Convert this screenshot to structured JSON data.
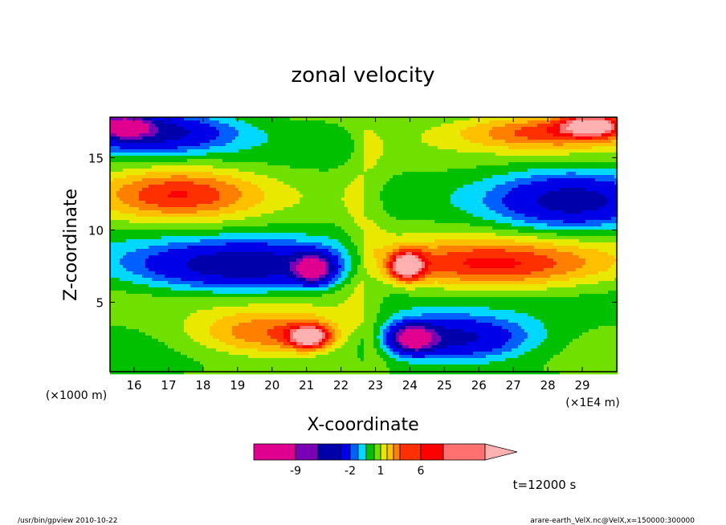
{
  "chart_data": {
    "type": "heatmap",
    "title": "zonal velocity",
    "xlabel": "X-coordinate",
    "ylabel": "Z-coordinate",
    "x_unit": "(×1E4 m)",
    "y_unit": "(×1000 m)",
    "x_ticks": [
      "16",
      "17",
      "18",
      "19",
      "20",
      "21",
      "22",
      "23",
      "24",
      "25",
      "26",
      "27",
      "28",
      "29"
    ],
    "y_ticks": [
      "5",
      "10",
      "15"
    ],
    "xlim": [
      15.3,
      30.0
    ],
    "ylim": [
      0.2,
      17.8
    ],
    "time_label": "t=12000 s",
    "colorbar": {
      "tick_labels": [
        "-9",
        "-2",
        "1",
        "6"
      ],
      "colors": [
        "#e00090",
        "#7a00b4",
        "#0000aa",
        "#0000e8",
        "#0060ff",
        "#00d8ff",
        "#00c000",
        "#70e000",
        "#e8e800",
        "#ffc000",
        "#ff8000",
        "#ff3000",
        "#ff0000",
        "#ff7070",
        "#ffb0b0"
      ]
    },
    "fields": [
      {
        "x": 15.7,
        "z": 17.2,
        "u": -9.5,
        "sx": 0.7,
        "sz": 0.7
      },
      {
        "x": 16.5,
        "z": 16.8,
        "u": -6.0,
        "sx": 2.2,
        "sz": 1.3
      },
      {
        "x": 29.3,
        "z": 17.3,
        "u": 6.5,
        "sx": 0.9,
        "sz": 0.8
      },
      {
        "x": 28.0,
        "z": 16.8,
        "u": 4.2,
        "sx": 2.6,
        "sz": 1.2
      },
      {
        "x": 17.3,
        "z": 12.5,
        "u": 4.5,
        "sx": 2.3,
        "sz": 1.8
      },
      {
        "x": 28.7,
        "z": 12.0,
        "u": -5.5,
        "sx": 2.2,
        "sz": 1.9
      },
      {
        "x": 19.3,
        "z": 7.5,
        "u": -6.5,
        "sx": 3.2,
        "sz": 1.6
      },
      {
        "x": 21.2,
        "z": 7.3,
        "u": -9.5,
        "sx": 0.5,
        "sz": 0.9
      },
      {
        "x": 26.3,
        "z": 7.6,
        "u": 5.0,
        "sx": 3.5,
        "sz": 1.7
      },
      {
        "x": 23.9,
        "z": 7.5,
        "u": 7.5,
        "sx": 0.5,
        "sz": 1.0
      },
      {
        "x": 20.0,
        "z": 2.8,
        "u": 4.3,
        "sx": 2.3,
        "sz": 1.6
      },
      {
        "x": 21.1,
        "z": 2.6,
        "u": 7.0,
        "sx": 0.6,
        "sz": 0.8
      },
      {
        "x": 25.3,
        "z": 2.5,
        "u": -6.0,
        "sx": 2.2,
        "sz": 1.5
      },
      {
        "x": 24.1,
        "z": 2.5,
        "u": -9.5,
        "sx": 0.6,
        "sz": 0.9
      },
      {
        "x": 22.7,
        "z": 9.0,
        "u": 1.2,
        "sx": 0.6,
        "sz": 10.0
      }
    ]
  },
  "footer": {
    "left": "/usr/bin/gpview   2010-10-22",
    "right": "arare-earth_VelX.nc@VelX,x=150000:300000"
  }
}
